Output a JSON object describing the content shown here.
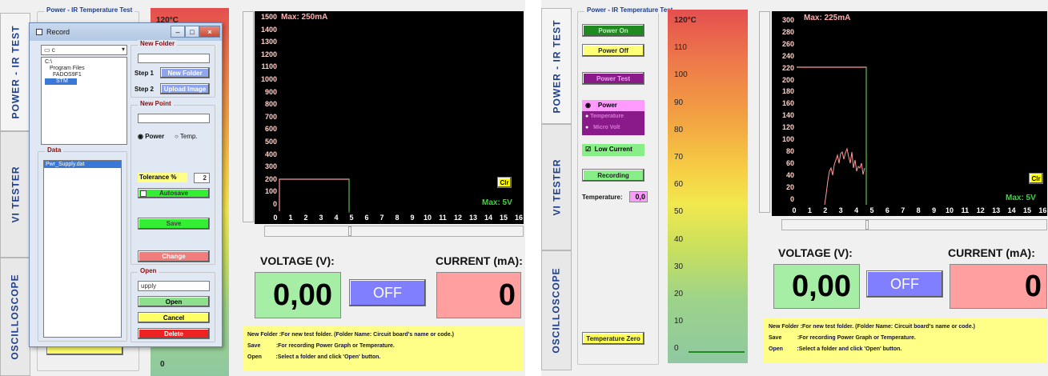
{
  "left": {
    "tabs": [
      "POWER - IR TEST",
      "VI TESTER",
      "OSCILLOSCOPE"
    ],
    "group_title": "Power - IR Temperature Test",
    "thermo_top": "120°C",
    "temp_bottom_value": "0",
    "plot": {
      "max_label": "Max: 250mA",
      "voltage_label": "Max: 5V",
      "clr": "Clr",
      "y_ticks": [
        "1500",
        "1400",
        "1300",
        "1200",
        "1100",
        "1000",
        "900",
        "800",
        "700",
        "600",
        "500",
        "400",
        "300",
        "200",
        "100",
        "0"
      ],
      "x_ticks": [
        "0",
        "1",
        "2",
        "3",
        "4",
        "5",
        "6",
        "7",
        "8",
        "9",
        "10",
        "11",
        "12",
        "13",
        "14",
        "15",
        "16"
      ]
    },
    "voltage_title": "VOLTAGE (V):",
    "current_title": "CURRENT (mA):",
    "voltage_value": "0,00",
    "current_value": "0",
    "off": "OFF",
    "help": [
      {
        "k": "New Folder",
        "v": ":For new test folder.  (Folder Name: Circuit board's name or code.)"
      },
      {
        "k": "Save",
        "v": ":For recording Power Graph or Temperature."
      },
      {
        "k": "Open",
        "v": ":Select a folder and click 'Open' button."
      }
    ],
    "dialog": {
      "title": "Record",
      "drive": "c",
      "folders": [
        "C:\\",
        "Program Files",
        "FADOS9F1",
        "STM"
      ],
      "data_title": "Data",
      "data_item": "Pwr_Supply.dat",
      "new_folder_title": "New Folder",
      "step1": "Step 1",
      "step2": "Step 2",
      "new_folder_btn": "New Folder",
      "upload_btn": "Upload Image",
      "new_point_title": "New Point",
      "radio_power": "Power",
      "radio_temp": "Temp.",
      "tolerance_label": "Tolerance %",
      "tolerance_value": "2",
      "autosave": "Autosave",
      "save": "Save",
      "change": "Change",
      "open_title": "Open",
      "open_value": "upply",
      "open_btn": "Open",
      "cancel_btn": "Cancel",
      "delete_btn": "Delete"
    }
  },
  "right": {
    "tabs": [
      "POWER - IR TEST",
      "VI TESTER",
      "OSCILLOSCOPE"
    ],
    "group_title": "Power - IR Temperature Test",
    "buttons": {
      "power_on": "Power On",
      "power_off": "Power Off",
      "power_test": "Power Test",
      "low_current": "Low Current",
      "recording": "Recording",
      "temp_zero": "Temperature Zero"
    },
    "radios": [
      "Power",
      "Temperature",
      "Micro Volt"
    ],
    "temperature_label": "Temperature:",
    "temperature_value": "0,0",
    "thermo_labels": [
      "120°C",
      "110",
      "100",
      "90",
      "80",
      "70",
      "60",
      "50",
      "40",
      "30",
      "20",
      "10",
      "0"
    ],
    "plot": {
      "max_label": "Max: 225mA",
      "voltage_label": "Max: 5V",
      "clr": "Clr",
      "y_ticks": [
        "300",
        "280",
        "260",
        "240",
        "220",
        "200",
        "180",
        "160",
        "140",
        "120",
        "100",
        "80",
        "60",
        "40",
        "20",
        "0"
      ],
      "x_ticks": [
        "0",
        "1",
        "2",
        "3",
        "4",
        "5",
        "6",
        "7",
        "8",
        "9",
        "10",
        "11",
        "12",
        "13",
        "14",
        "15",
        "16"
      ]
    },
    "voltage_title": "VOLTAGE (V):",
    "current_title": "CURRENT (mA):",
    "voltage_value": "0,00",
    "current_value": "0",
    "off": "OFF",
    "help": [
      {
        "k": "New Folder",
        "v": ":For new test folder.  (Folder Name: Circuit board's name or code.)"
      },
      {
        "k": "Save",
        "v": ":For recording Power Graph or Temperature."
      },
      {
        "k": "Open",
        "v": ":Select a folder and click 'Open' button."
      }
    ]
  },
  "colors": {
    "trace": "#ff9a9a",
    "voltage_line": "#33cc33",
    "plot_bg": "#000000",
    "voltage_box": "#a6eda6",
    "off_box": "#7f7fff",
    "current_box": "#ff9f9f",
    "help_bg": "#ffff88"
  }
}
